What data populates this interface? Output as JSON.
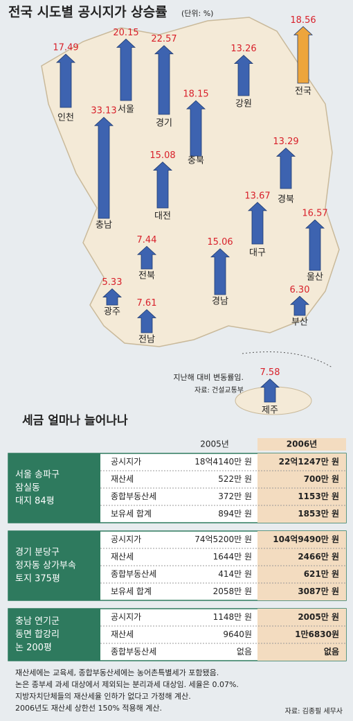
{
  "chart_data": {
    "type": "arrow",
    "title": "전국 시도별 공시지가 상승률",
    "unit": "(단위: %)",
    "categories": [
      "인천",
      "서울",
      "경기",
      "강원",
      "전국",
      "충남",
      "충북",
      "대전",
      "경북",
      "대구",
      "울산",
      "전북",
      "경남",
      "광주",
      "부산",
      "전남",
      "제주"
    ],
    "values": [
      17.49,
      20.15,
      22.57,
      13.26,
      18.56,
      33.13,
      18.15,
      15.08,
      13.29,
      13.67,
      16.57,
      7.44,
      15.06,
      5.33,
      6.3,
      7.61,
      7.58
    ],
    "value_labels": [
      "17.49",
      "20.15",
      "22.57",
      "13.26",
      "18.56",
      "33.13",
      "18.15",
      "15.08",
      "13.29",
      "13.67",
      "16.57",
      "7.44",
      "15.06",
      "5.33",
      "6.30",
      "7.61",
      "7.58"
    ],
    "color": "#3d63b0",
    "highlight_color": "#eda53c",
    "value_label_color": "#d8202a",
    "note": "지난해 대비 변동률임.",
    "source": "자료: 건설교통부"
  },
  "tables": {
    "title": "세금 얼마나 늘어나나",
    "columns": [
      "2005년",
      "2006년"
    ],
    "groups": [
      {
        "label": [
          "서울 송파구",
          "잠실동",
          "대지 84평"
        ],
        "rows": [
          [
            "공시지가",
            "18억4140만 원",
            "22억1247만 원"
          ],
          [
            "재산세",
            "522만 원",
            "700만 원"
          ],
          [
            "종합부동산세",
            "372만 원",
            "1153만 원"
          ],
          [
            "보유세 합계",
            "894만 원",
            "1853만 원"
          ]
        ]
      },
      {
        "label": [
          "경기 분당구",
          "정자동 상가부속",
          "토지 375평"
        ],
        "rows": [
          [
            "공시지가",
            "74억5200만 원",
            "104억9490만 원"
          ],
          [
            "재산세",
            "1644만 원",
            "2466만 원"
          ],
          [
            "종합부동산세",
            "414만 원",
            "621만 원"
          ],
          [
            "보유세 합계",
            "2058만 원",
            "3087만 원"
          ]
        ]
      },
      {
        "label": [
          "충남 연기군",
          "동면 합강리",
          "논 200평"
        ],
        "rows": [
          [
            "공시지가",
            "1148만 원",
            "2005만 원"
          ],
          [
            "재산세",
            "9640원",
            "1만6830원"
          ],
          [
            "종합부동산세",
            "없음",
            "없음"
          ]
        ]
      }
    ],
    "footnotes": [
      "재산세에는 교육세, 종합부동산세에는 농어촌특별세가 포함됐음.",
      "논은 종부세 과세 대상에서 제외되는 분리과세 대상임. 세율은 0.07%.",
      "지방자치단체들의 재산세율 인하가 없다고 가정해 계산.",
      "2006년도 재산세 상한선 150% 적용해 계산."
    ],
    "source": "자료: 김종필 세무사"
  }
}
